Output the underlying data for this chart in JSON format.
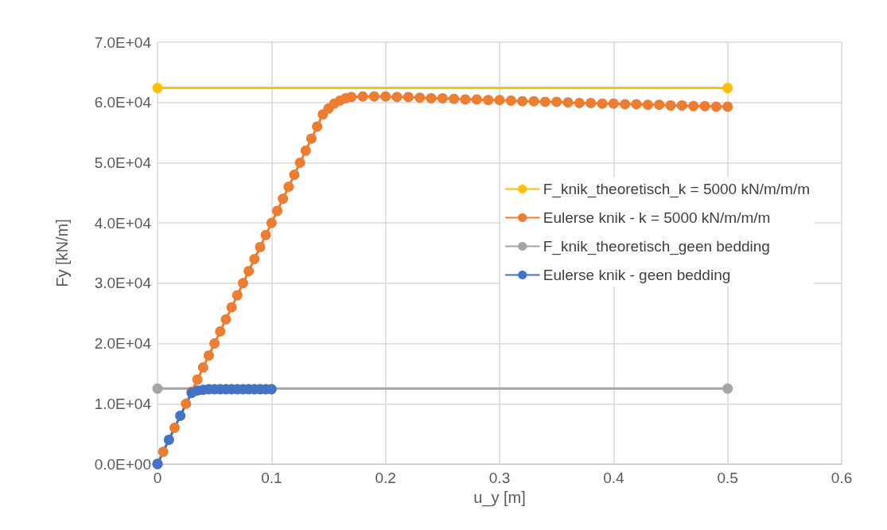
{
  "chart_data": {
    "type": "line",
    "xlabel": "u_y [m]",
    "ylabel": "Fy [kN/m]",
    "xlim": [
      0,
      0.6
    ],
    "xticks": [
      0,
      0.1,
      0.2,
      0.3,
      0.4,
      0.5,
      0.6
    ],
    "ylim": [
      0,
      70000
    ],
    "yticks": [
      {
        "value": 0,
        "label": "0.0E+00"
      },
      {
        "value": 10000,
        "label": "1.0E+04"
      },
      {
        "value": 20000,
        "label": "2.0E+04"
      },
      {
        "value": 30000,
        "label": "3.0E+04"
      },
      {
        "value": 40000,
        "label": "4.0E+04"
      },
      {
        "value": 50000,
        "label": "5.0E+04"
      },
      {
        "value": 60000,
        "label": "6.0E+04"
      },
      {
        "value": 70000,
        "label": "7.0E+04"
      }
    ],
    "grid": true,
    "legend": "right",
    "marker": "circle",
    "line_style": "solid",
    "series": [
      {
        "name": "F_knik_theoretisch_k = 5000 kN/m/m/m",
        "color": "#ffc000",
        "x": [
          0,
          0.5
        ],
        "values": [
          62400,
          62400
        ]
      },
      {
        "name": "Eulerse knik - k = 5000 kN/m/m/m",
        "color": "#ed7d31",
        "x": [
          0,
          0.005,
          0.01,
          0.015,
          0.02,
          0.025,
          0.03,
          0.035,
          0.04,
          0.045,
          0.05,
          0.055,
          0.06,
          0.065,
          0.07,
          0.075,
          0.08,
          0.085,
          0.09,
          0.095,
          0.1,
          0.105,
          0.11,
          0.115,
          0.12,
          0.125,
          0.13,
          0.135,
          0.14,
          0.145,
          0.15,
          0.155,
          0.16,
          0.165,
          0.17,
          0.18,
          0.19,
          0.2,
          0.21,
          0.22,
          0.23,
          0.24,
          0.25,
          0.26,
          0.27,
          0.28,
          0.29,
          0.3,
          0.31,
          0.32,
          0.33,
          0.34,
          0.35,
          0.36,
          0.37,
          0.38,
          0.39,
          0.4,
          0.41,
          0.42,
          0.43,
          0.44,
          0.45,
          0.46,
          0.47,
          0.48,
          0.49,
          0.5
        ],
        "values": [
          0,
          2000,
          null,
          6000,
          null,
          10000,
          12000,
          14000,
          16000,
          18000,
          20000,
          22000,
          24000,
          26000,
          28000,
          30000,
          32000,
          34000,
          36000,
          38000,
          40000,
          42000,
          44000,
          46000,
          48000,
          50000,
          52000,
          54000,
          56000,
          58000,
          59000,
          59800,
          60300,
          60700,
          60900,
          61000,
          61000,
          61000,
          60900,
          60900,
          60800,
          60700,
          60700,
          60600,
          60500,
          60500,
          60400,
          60400,
          60300,
          60200,
          60200,
          60100,
          60100,
          60000,
          59900,
          59900,
          59800,
          59800,
          59700,
          59700,
          59600,
          59600,
          59500,
          59500,
          59400,
          59400,
          59300,
          59300
        ]
      },
      {
        "name": "F_knik_theoretisch_geen bedding",
        "color": "#a5a5a5",
        "x": [
          0,
          0.5
        ],
        "values": [
          12500,
          12500
        ]
      },
      {
        "name": "Eulerse knik - geen bedding",
        "color": "#4472c4",
        "x": [
          0,
          0.01,
          0.02,
          0.03,
          0.035,
          0.04,
          0.045,
          0.05,
          0.055,
          0.06,
          0.065,
          0.07,
          0.075,
          0.08,
          0.085,
          0.09,
          0.095,
          0.1
        ],
        "values": [
          0,
          4000,
          8000,
          11800,
          12200,
          12300,
          12400,
          12400,
          12400,
          12400,
          12400,
          12400,
          12400,
          12400,
          12400,
          12400,
          12400,
          12400
        ]
      }
    ]
  }
}
